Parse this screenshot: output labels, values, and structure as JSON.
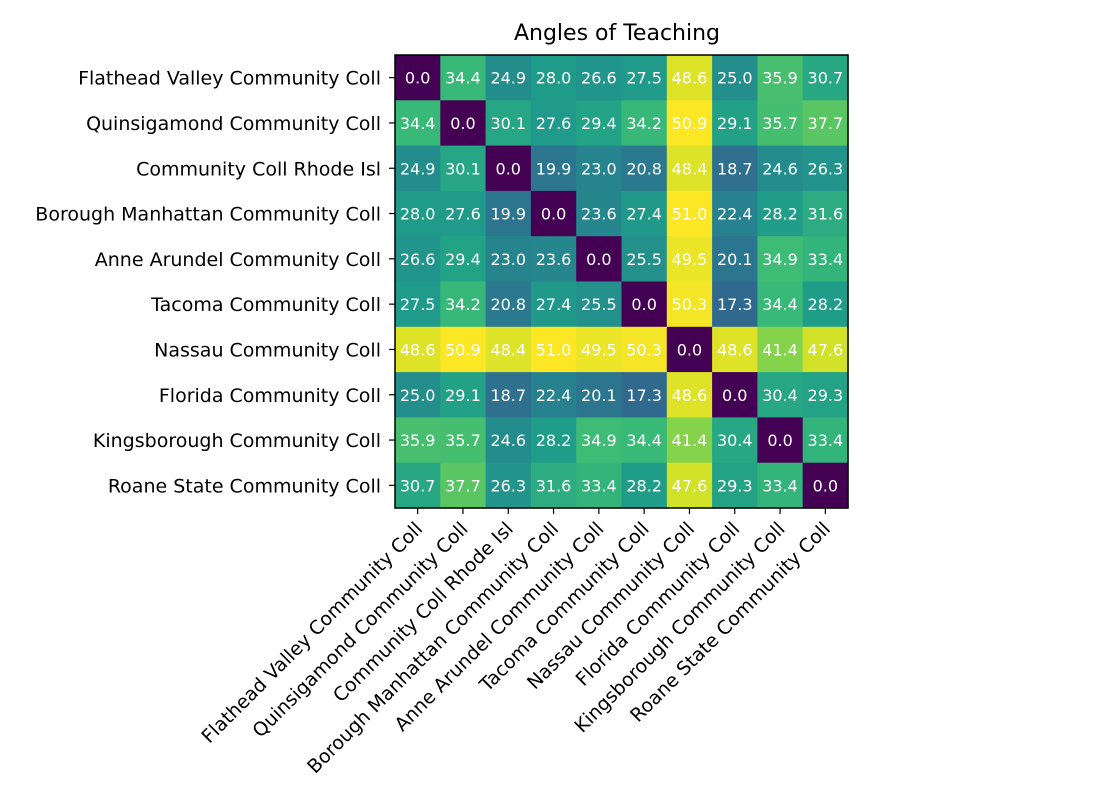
{
  "chart_data": {
    "type": "heatmap",
    "title": "Angles of Teaching",
    "xlabel": "",
    "ylabel": "",
    "categories": [
      "Flathead Valley Community Coll",
      "Quinsigamond Community Coll",
      "Community Coll Rhode Isl",
      "Borough Manhattan Community Coll",
      "Anne Arundel Community Coll",
      "Tacoma Community Coll",
      "Nassau Community Coll",
      "Florida Community Coll",
      "Kingsborough Community Coll",
      "Roane State Community Coll"
    ],
    "values": [
      [
        0.0,
        34.4,
        24.9,
        28.0,
        26.6,
        27.5,
        48.6,
        25.0,
        35.9,
        30.7
      ],
      [
        34.4,
        0.0,
        30.1,
        27.6,
        29.4,
        34.2,
        50.9,
        29.1,
        35.7,
        37.7
      ],
      [
        24.9,
        30.1,
        0.0,
        19.9,
        23.0,
        20.8,
        48.4,
        18.7,
        24.6,
        26.3
      ],
      [
        28.0,
        27.6,
        19.9,
        0.0,
        23.6,
        27.4,
        51.0,
        22.4,
        28.2,
        31.6
      ],
      [
        26.6,
        29.4,
        23.0,
        23.6,
        0.0,
        25.5,
        49.5,
        20.1,
        34.9,
        33.4
      ],
      [
        27.5,
        34.2,
        20.8,
        27.4,
        25.5,
        0.0,
        50.3,
        17.3,
        34.4,
        28.2
      ],
      [
        48.6,
        50.9,
        48.4,
        51.0,
        49.5,
        50.3,
        0.0,
        48.6,
        41.4,
        47.6
      ],
      [
        25.0,
        29.1,
        18.7,
        22.4,
        20.1,
        17.3,
        48.6,
        0.0,
        30.4,
        29.3
      ],
      [
        35.9,
        35.7,
        24.6,
        28.2,
        34.9,
        34.4,
        41.4,
        30.4,
        0.0,
        33.4
      ],
      [
        30.7,
        37.7,
        26.3,
        31.6,
        33.4,
        28.2,
        47.6,
        29.3,
        33.4,
        0.0
      ]
    ],
    "value_range": [
      0.0,
      51.0
    ],
    "colormap": "viridis",
    "colormap_stops": [
      "#440154",
      "#482878",
      "#3e4989",
      "#31688e",
      "#26828e",
      "#1f9e89",
      "#35b779",
      "#6ece58",
      "#b5de2b",
      "#fde725"
    ],
    "cell_text_color": "#ffffff",
    "grid": false
  }
}
